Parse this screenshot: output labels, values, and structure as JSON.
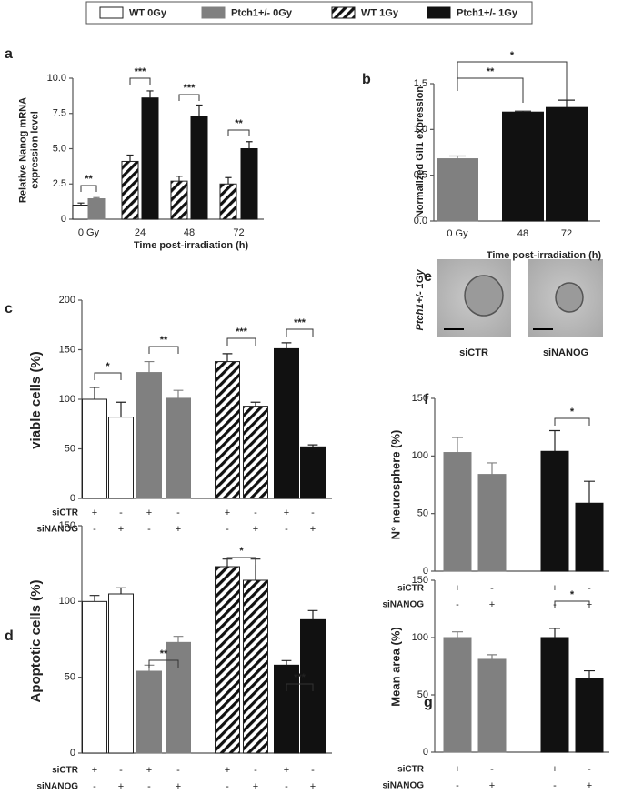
{
  "legend": [
    {
      "name": "WT 0Gy",
      "color": "#ffffff",
      "pattern": "solid"
    },
    {
      "name": "Ptch1+/- 0Gy",
      "color": "#808080",
      "pattern": "solid"
    },
    {
      "name": "WT 1Gy",
      "color": "#ffffff",
      "pattern": "hatch"
    },
    {
      "name": "Ptch1+/- 1Gy",
      "color": "#111111",
      "pattern": "solid"
    }
  ],
  "micrographs": {
    "panel": "e",
    "side_label": "Ptch1+/- 1Gy",
    "images": [
      {
        "label": "siCTR"
      },
      {
        "label": "siNANOG"
      }
    ]
  },
  "chart_data": [
    {
      "type": "bar",
      "panel": "a",
      "ylabel": [
        "Relative Nanog mRNA",
        "expression level"
      ],
      "xlabel": "Time post-irradiation (h)",
      "categories": [
        "0 Gy",
        "24",
        "48",
        "72"
      ],
      "ylim": [
        0,
        10
      ],
      "yticks": [
        0,
        2.5,
        {
          "value": 5,
          "label": "5.0"
        },
        7.5,
        {
          "value": 10,
          "label": "10.0"
        }
      ],
      "series": [
        {
          "color": "#ffffff",
          "pattern": "solid",
          "values": [
            1.0,
            null,
            null,
            null
          ],
          "errors": [
            0.15,
            null,
            null,
            null
          ]
        },
        {
          "color": "#808080",
          "pattern": "solid",
          "values": [
            1.45,
            null,
            null,
            null
          ],
          "errors": [
            0.08,
            null,
            null,
            null
          ]
        },
        {
          "color": "#ffffff",
          "pattern": "hatch",
          "values": [
            null,
            4.1,
            2.7,
            2.5
          ],
          "errors": [
            null,
            0.45,
            0.35,
            0.45
          ]
        },
        {
          "color": "#111111",
          "pattern": "solid",
          "values": [
            null,
            8.6,
            7.3,
            5.0
          ],
          "errors": [
            null,
            0.5,
            0.8,
            0.5
          ]
        }
      ],
      "annotations": [
        {
          "text": "**"
        },
        {
          "text": "***"
        },
        {
          "text": "***"
        },
        {
          "text": "**"
        }
      ]
    },
    {
      "type": "bar",
      "panel": "b",
      "ylabel": "Normalized Gli1 expression",
      "xlabel": "Time post-irradiation (h)",
      "categories": [
        "0 Gy",
        "48",
        "72"
      ],
      "ylim": [
        0,
        1.5
      ],
      "yticks": [
        {
          "value": 0,
          "label": "0.0"
        },
        0.5,
        {
          "value": 1,
          "label": "1.0"
        },
        1.5
      ],
      "series": [
        {
          "color": "#808080",
          "pattern": "solid",
          "values": [
            0.68,
            null,
            null
          ],
          "errors": [
            0.03,
            null,
            null
          ]
        },
        {
          "color": "#111111",
          "pattern": "solid",
          "values": [
            null,
            1.19,
            1.24
          ],
          "errors": [
            null,
            0.01,
            0.08
          ]
        }
      ],
      "annotations": [
        {
          "text": "**"
        },
        {
          "text": "*"
        }
      ]
    },
    {
      "type": "bar",
      "panel": "c",
      "ylabel": "viable cells (%)",
      "ylim": [
        0,
        200
      ],
      "yticks": [
        0,
        50,
        100,
        150,
        200
      ],
      "series": [
        {
          "color": "#ffffff",
          "pattern": "solid",
          "values": [
            100,
            82,
            null,
            null,
            null,
            null,
            null,
            null
          ],
          "errors": [
            12,
            15,
            null,
            null,
            null,
            null,
            null,
            null
          ]
        },
        {
          "color": "#808080",
          "pattern": "solid",
          "values": [
            null,
            null,
            127,
            101,
            null,
            null,
            null,
            null
          ],
          "errors": [
            null,
            null,
            11,
            8,
            null,
            null,
            null,
            null
          ]
        },
        {
          "color": "#ffffff",
          "pattern": "hatch",
          "values": [
            null,
            null,
            null,
            null,
            138,
            93,
            null,
            null
          ],
          "errors": [
            null,
            null,
            null,
            null,
            8,
            4,
            null,
            null
          ]
        },
        {
          "color": "#111111",
          "pattern": "solid",
          "values": [
            null,
            null,
            null,
            null,
            null,
            null,
            151,
            52
          ],
          "errors": [
            null,
            null,
            null,
            null,
            null,
            null,
            6,
            2
          ]
        }
      ],
      "rows": [
        {
          "label": "siCTR",
          "marks": [
            "+",
            "-",
            "+",
            "-",
            "+",
            "-",
            "+",
            "-"
          ]
        },
        {
          "label": "siNANOG",
          "marks": [
            "-",
            "+",
            "-",
            "+",
            "-",
            "+",
            "-",
            "+"
          ]
        }
      ],
      "annotations": [
        {
          "text": "*"
        },
        {
          "text": "**"
        },
        {
          "text": "***"
        },
        {
          "text": "***"
        }
      ]
    },
    {
      "type": "bar",
      "panel": "d",
      "ylabel": "Apoptotic cells (%)",
      "ylim": [
        0,
        150
      ],
      "yticks": [
        0,
        50,
        100,
        150
      ],
      "series": [
        {
          "color": "#ffffff",
          "pattern": "solid",
          "values": [
            100,
            105,
            null,
            null,
            null,
            null,
            null,
            null
          ],
          "errors": [
            4,
            4,
            null,
            null,
            null,
            null,
            null,
            null
          ]
        },
        {
          "color": "#808080",
          "pattern": "solid",
          "values": [
            null,
            null,
            54,
            73,
            null,
            null,
            null,
            null
          ],
          "errors": [
            null,
            null,
            4,
            4,
            null,
            null,
            null,
            null
          ]
        },
        {
          "color": "#ffffff",
          "pattern": "hatch",
          "values": [
            null,
            null,
            null,
            null,
            123,
            114,
            null,
            null
          ],
          "errors": [
            null,
            null,
            null,
            null,
            5,
            14,
            null,
            null
          ]
        },
        {
          "color": "#111111",
          "pattern": "solid",
          "values": [
            null,
            null,
            null,
            null,
            null,
            null,
            58,
            88
          ],
          "errors": [
            null,
            null,
            null,
            null,
            null,
            null,
            3,
            6
          ]
        }
      ],
      "rows": [
        {
          "label": "siCTR",
          "marks": [
            "+",
            "-",
            "+",
            "-",
            "+",
            "-",
            "+",
            "-"
          ]
        },
        {
          "label": "siNANOG",
          "marks": [
            "-",
            "+",
            "-",
            "+",
            "-",
            "+",
            "-",
            "+"
          ]
        }
      ],
      "annotations": [
        {
          "text": "**"
        },
        {
          "text": "*"
        },
        {
          "text": "***"
        }
      ]
    },
    {
      "type": "bar",
      "panel": "f",
      "ylabel": "N° neurosphere (%)",
      "ylim": [
        0,
        150
      ],
      "yticks": [
        0,
        50,
        100,
        150
      ],
      "series": [
        {
          "color": "#808080",
          "pattern": "solid",
          "values": [
            103,
            84,
            null,
            null
          ],
          "errors": [
            13,
            10,
            null,
            null
          ]
        },
        {
          "color": "#111111",
          "pattern": "solid",
          "values": [
            null,
            null,
            104,
            59
          ],
          "errors": [
            null,
            null,
            18,
            19
          ]
        }
      ],
      "rows": [
        {
          "label": "siCTR",
          "marks": [
            "+",
            "-",
            "+",
            "-"
          ]
        },
        {
          "label": "siNANOG",
          "marks": [
            "-",
            "+",
            "-",
            "+"
          ]
        }
      ],
      "annotations": [
        {
          "text": "*"
        }
      ]
    },
    {
      "type": "bar",
      "panel": "g",
      "ylabel": "Mean area (%)",
      "ylim": [
        0,
        150
      ],
      "yticks": [
        0,
        50,
        100,
        150
      ],
      "series": [
        {
          "color": "#808080",
          "pattern": "solid",
          "values": [
            100,
            81,
            null,
            null
          ],
          "errors": [
            5,
            4,
            null,
            null
          ]
        },
        {
          "color": "#111111",
          "pattern": "solid",
          "values": [
            null,
            null,
            100,
            64
          ],
          "errors": [
            null,
            null,
            8,
            7
          ]
        }
      ],
      "rows": [
        {
          "label": "siCTR",
          "marks": [
            "+",
            "-",
            "+",
            "-"
          ]
        },
        {
          "label": "siNANOG",
          "marks": [
            "-",
            "+",
            "-",
            "+"
          ]
        }
      ],
      "annotations": [
        {
          "text": "*"
        }
      ]
    }
  ]
}
